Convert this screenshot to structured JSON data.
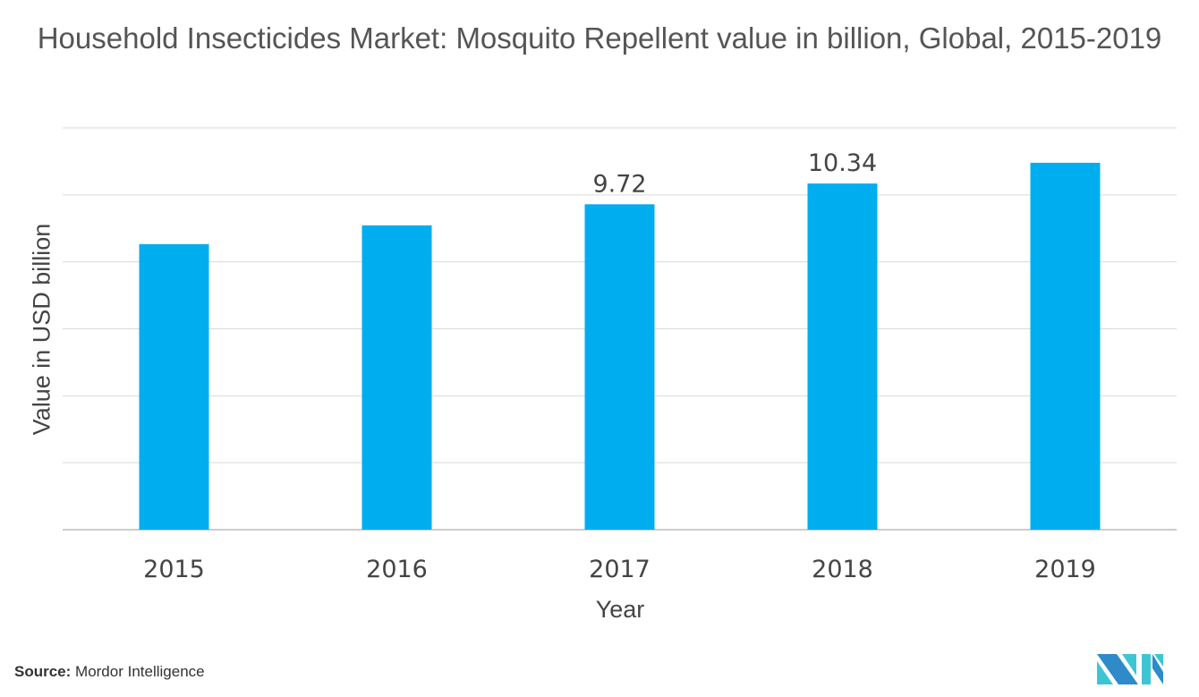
{
  "chart_data": {
    "type": "bar",
    "title": "Household Insecticides Market: Mosquito Repellent value in billion, Global, 2015-2019",
    "xlabel": "Year",
    "ylabel": "Value in USD billion",
    "categories": [
      "2015",
      "2016",
      "2017",
      "2018",
      "2019"
    ],
    "values": [
      8.53,
      9.09,
      9.72,
      10.34,
      10.96
    ],
    "data_labels": [
      null,
      null,
      "9.72",
      "10.34",
      null
    ],
    "ylim": [
      0,
      12
    ],
    "ytick_step": 2,
    "grid": true,
    "bar_color": "#00aeef"
  },
  "source": {
    "label": "Source:",
    "text": "Mordor Intelligence"
  },
  "logo": {
    "text": "Mordor Intelligence",
    "colors": [
      "#2e8bc9",
      "#3cc6d4"
    ]
  }
}
